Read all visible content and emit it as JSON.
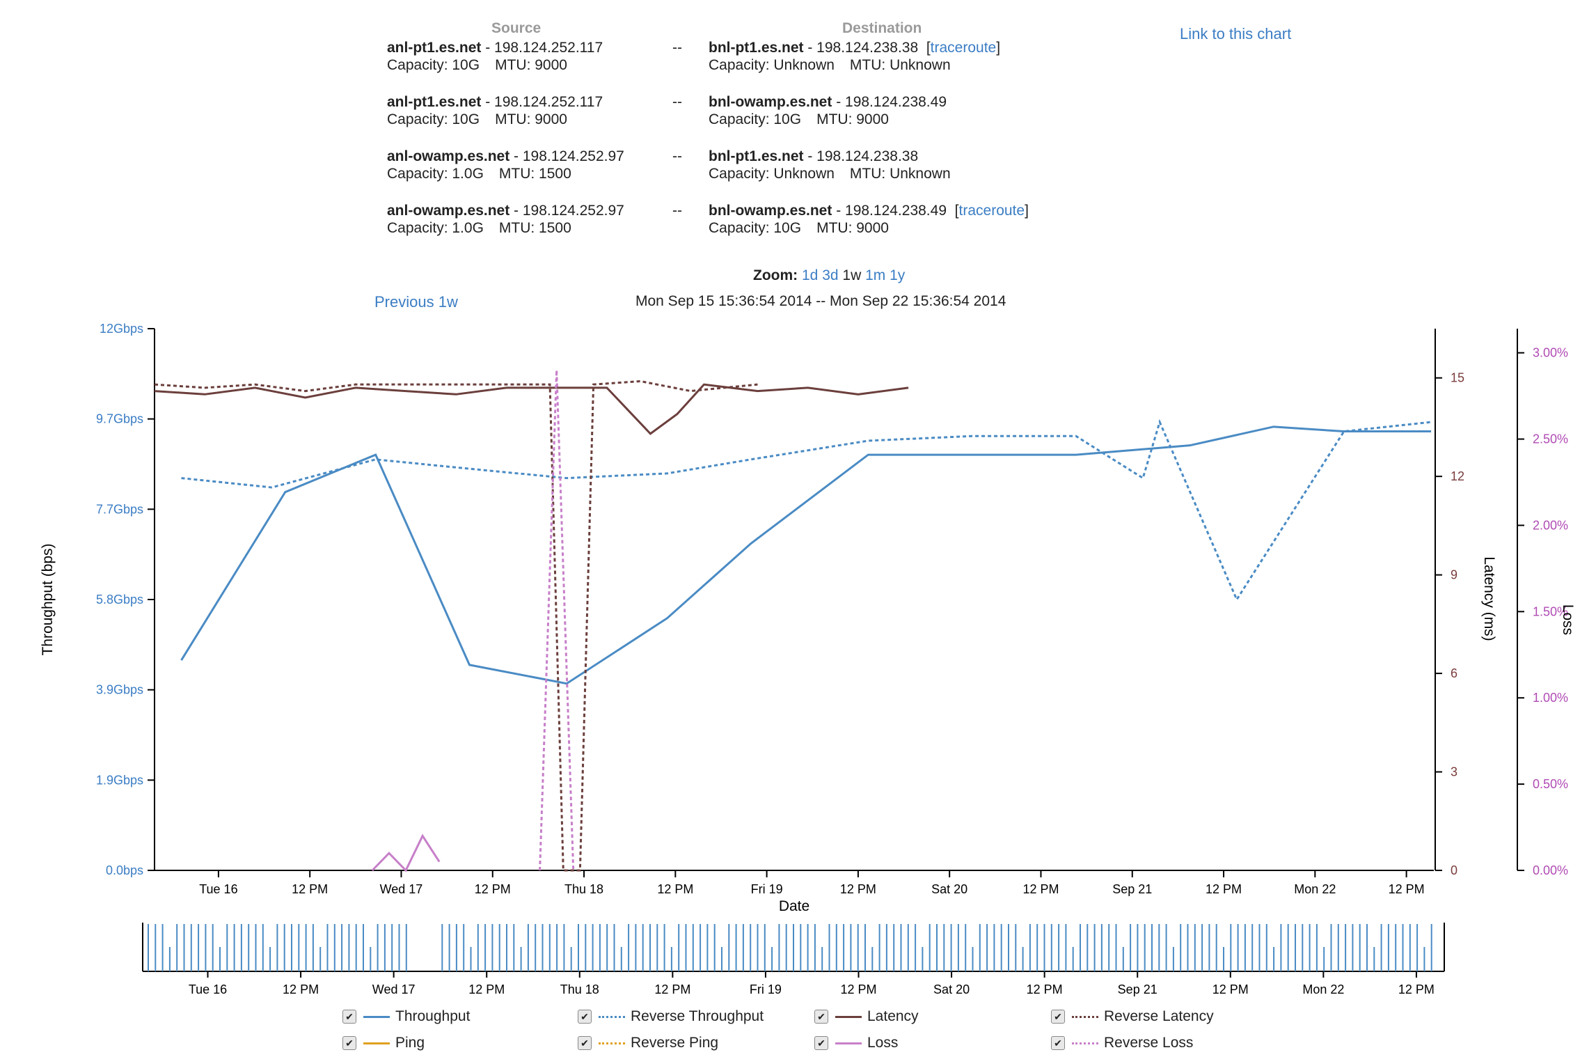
{
  "header": {
    "source_label": "Source",
    "destination_label": "Destination",
    "link_chart": "Link to this chart",
    "pairs": [
      {
        "src_host": "anl-pt1.es.net",
        "src_ip": " - 198.124.252.117",
        "src_cap": "Capacity: 10G",
        "src_mtu": "MTU: 9000",
        "sep": "--",
        "dst_host": "bnl-pt1.es.net",
        "dst_ip": " - 198.124.238.38",
        "dst_cap": "Capacity: Unknown",
        "dst_mtu": "MTU: Unknown",
        "traceroute": "traceroute"
      },
      {
        "src_host": "anl-pt1.es.net",
        "src_ip": " - 198.124.252.117",
        "src_cap": "Capacity: 10G",
        "src_mtu": "MTU: 9000",
        "sep": "--",
        "dst_host": "bnl-owamp.es.net",
        "dst_ip": " - 198.124.238.49",
        "dst_cap": "Capacity: 10G",
        "dst_mtu": "MTU: 9000",
        "traceroute": ""
      },
      {
        "src_host": "anl-owamp.es.net",
        "src_ip": " - 198.124.252.97",
        "src_cap": "Capacity: 1.0G",
        "src_mtu": "MTU: 1500",
        "sep": "--",
        "dst_host": "bnl-pt1.es.net",
        "dst_ip": " - 198.124.238.38",
        "dst_cap": "Capacity: Unknown",
        "dst_mtu": "MTU: Unknown",
        "traceroute": ""
      },
      {
        "src_host": "anl-owamp.es.net",
        "src_ip": " - 198.124.252.97",
        "src_cap": "Capacity: 1.0G",
        "src_mtu": "MTU: 1500",
        "sep": "--",
        "dst_host": "bnl-owamp.es.net",
        "dst_ip": " - 198.124.238.49",
        "dst_cap": "Capacity: 10G",
        "dst_mtu": "MTU: 9000",
        "traceroute": "traceroute"
      }
    ]
  },
  "zoom": {
    "label": "Zoom:",
    "options": [
      "1d",
      "3d",
      "1w",
      "1m",
      "1y"
    ],
    "active": "1w"
  },
  "nav": {
    "previous": "Previous 1w",
    "range": "Mon Sep 15 15:36:54 2014 -- Mon Sep 22 15:36:54 2014"
  },
  "colors": {
    "throughput": "#4a8bc4",
    "latency": "#6b3f3c",
    "loss": "#c77fc9",
    "ping": "#e0a020",
    "axis_left": "#3b7dc4",
    "axis_latency": "#7a3b3b",
    "axis_loss": "#b04bb4"
  },
  "chart_data": {
    "type": "line",
    "xlabel": "Date",
    "x_range": [
      "2014-09-15 15:36:54",
      "2014-09-22 15:36:54"
    ],
    "x_ticks": [
      "Tue 16",
      "12 PM",
      "Wed 17",
      "12 PM",
      "Thu 18",
      "12 PM",
      "Fri 19",
      "12 PM",
      "Sat 20",
      "12 PM",
      "Sep 21",
      "12 PM",
      "Mon 22",
      "12 PM"
    ],
    "x_tick_hours": [
      8.4,
      20.4,
      32.4,
      44.4,
      56.4,
      68.4,
      80.4,
      92.4,
      104.4,
      116.4,
      128.4,
      140.4,
      152.4,
      164.4
    ],
    "axes": {
      "throughput": {
        "label": "Throughput (bps)",
        "ticks": [
          "0.0bps",
          "1.9Gbps",
          "3.9Gbps",
          "5.8Gbps",
          "7.7Gbps",
          "9.7Gbps",
          "12Gbps"
        ],
        "ylim": [
          0,
          11.6
        ]
      },
      "latency": {
        "label": "Latency (ms)",
        "ticks": [
          "0",
          "3",
          "6",
          "9",
          "12",
          "15"
        ],
        "ylim": [
          0,
          16.5
        ]
      },
      "loss": {
        "label": "Loss",
        "ticks": [
          "0.00%",
          "0.50%",
          "1.00%",
          "1.50%",
          "2.00%",
          "2.50%",
          "3.00%"
        ],
        "ylim": [
          0,
          3.14
        ]
      }
    },
    "series": [
      {
        "name": "Throughput",
        "axis": "throughput",
        "style": "solid",
        "x": [
          0.8,
          3.9,
          6.6,
          9.4,
          12.3,
          15.3,
          17.8,
          21.3,
          24.4,
          27.5,
          30.9,
          33.4,
          35.5,
          38.1
        ],
        "y": [
          4.5,
          8.1,
          8.9,
          4.4,
          4.0,
          5.4,
          7.0,
          8.9,
          8.9,
          8.9,
          9.1,
          9.5,
          9.4,
          9.4
        ]
      },
      {
        "name": "Reverse Throughput",
        "axis": "throughput",
        "style": "dotted",
        "x": [
          0.8,
          3.5,
          6.6,
          9.4,
          12.3,
          15.3,
          17.8,
          21.3,
          24.4,
          27.5,
          29.5,
          30.0,
          32.3,
          35.5,
          38.1
        ],
        "y": [
          8.4,
          8.2,
          8.8,
          8.6,
          8.4,
          8.5,
          8.8,
          9.2,
          9.3,
          9.3,
          8.4,
          9.6,
          5.8,
          9.4,
          9.6
        ]
      },
      {
        "name": "Latency",
        "axis": "latency",
        "style": "solid",
        "x": [
          0.0,
          1.5,
          3.0,
          4.5,
          6.0,
          7.5,
          9.0,
          10.5,
          12.0,
          13.5,
          14.8,
          15.6,
          16.4,
          18.0,
          19.5,
          21.0,
          22.5
        ],
        "y": [
          14.6,
          14.5,
          14.7,
          14.4,
          14.7,
          14.6,
          14.5,
          14.7,
          14.7,
          14.7,
          13.3,
          13.9,
          14.8,
          14.6,
          14.7,
          14.5,
          14.7
        ]
      },
      {
        "name": "Reverse Latency",
        "axis": "latency",
        "style": "dotted",
        "x": [
          0.0,
          1.5,
          3.0,
          4.5,
          6.0,
          7.5,
          9.0,
          10.5,
          11.8,
          12.2,
          12.7,
          13.1,
          14.5,
          16.0,
          18.0
        ],
        "y": [
          14.8,
          14.7,
          14.8,
          14.6,
          14.8,
          14.8,
          14.8,
          14.8,
          14.8,
          0.0,
          0.0,
          14.8,
          14.9,
          14.6,
          14.8
        ]
      },
      {
        "name": "Loss",
        "axis": "loss",
        "style": "solid",
        "x": [
          6.5,
          7.0,
          7.5,
          8.0,
          8.5
        ],
        "y": [
          0.0,
          0.1,
          0.0,
          0.2,
          0.05
        ]
      },
      {
        "name": "Reverse Loss",
        "axis": "loss",
        "style": "dotted",
        "x": [
          11.5,
          12.0,
          12.5
        ],
        "y": [
          0.0,
          2.9,
          0.0
        ]
      },
      {
        "name": "Ping",
        "axis": "latency",
        "style": "solid",
        "x": [],
        "y": []
      },
      {
        "name": "Reverse Ping",
        "axis": "latency",
        "style": "dotted",
        "x": [],
        "y": []
      }
    ],
    "legend": [
      "Throughput",
      "Reverse Throughput",
      "Latency",
      "Reverse Latency",
      "Ping",
      "Reverse Ping",
      "Loss",
      "Reverse Loss"
    ],
    "grid": false,
    "legend_position": "bottom"
  }
}
